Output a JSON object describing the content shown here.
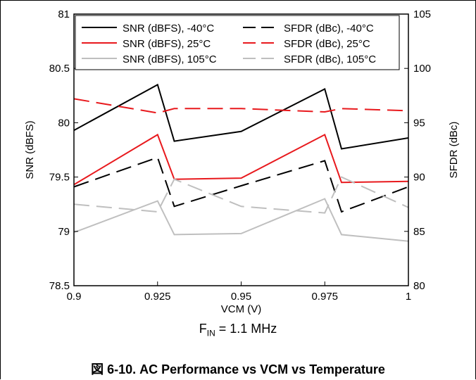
{
  "chart_data": {
    "type": "line",
    "x": [
      0.9,
      0.925,
      0.93,
      0.95,
      0.975,
      0.98,
      1.0
    ],
    "x_ticks": [
      0.9,
      0.925,
      0.95,
      0.975,
      1
    ],
    "x_tick_labels": [
      "0.9",
      "0.925",
      "0.95",
      "0.975",
      "1"
    ],
    "xlim": [
      0.9,
      1.0
    ],
    "xlabel": "VCM (V)",
    "ylabel": "SNR (dBFS)",
    "ylim": [
      78.5,
      81
    ],
    "y_ticks": [
      78.5,
      79,
      79.5,
      80,
      80.5,
      81
    ],
    "y_tick_labels": [
      "78.5",
      "79",
      "79.5",
      "80",
      "80.5",
      "81"
    ],
    "y2label": "SFDR (dBc)",
    "y2lim": [
      80,
      105
    ],
    "y2_ticks": [
      80,
      85,
      90,
      95,
      100,
      105
    ],
    "y2_tick_labels": [
      "80",
      "85",
      "90",
      "95",
      "100",
      "105"
    ],
    "grid": false,
    "legend_position": "top",
    "series": [
      {
        "name": "SNR (dBFS), -40°C",
        "axis": "left",
        "color": "#000000",
        "dash": "solid",
        "values": [
          79.93,
          80.35,
          79.83,
          79.92,
          80.31,
          79.76,
          79.86
        ]
      },
      {
        "name": "SFDR (dBc), -40°C",
        "axis": "right",
        "color": "#000000",
        "dash": "dashed",
        "values": [
          89.1,
          91.8,
          87.3,
          89.2,
          91.5,
          86.8,
          89.1
        ]
      },
      {
        "name": "SNR (dBFS), 25°C",
        "axis": "left",
        "color": "#e8191d",
        "dash": "solid",
        "values": [
          79.43,
          79.89,
          79.48,
          79.49,
          79.89,
          79.45,
          79.46
        ]
      },
      {
        "name": "SFDR (dBc), 25°C",
        "axis": "right",
        "color": "#e8191d",
        "dash": "dashed",
        "values": [
          97.2,
          95.9,
          96.3,
          96.3,
          96.0,
          96.3,
          96.1
        ]
      },
      {
        "name": "SNR (dBFS), 105°C",
        "axis": "left",
        "color": "#bfbfbf",
        "dash": "solid",
        "values": [
          78.99,
          79.28,
          78.97,
          78.98,
          79.3,
          78.97,
          78.91
        ]
      },
      {
        "name": "SFDR (dBc), 105°C",
        "axis": "right",
        "color": "#bfbfbf",
        "dash": "dashed",
        "values": [
          87.5,
          86.8,
          89.8,
          87.3,
          86.7,
          90.0,
          87.2
        ]
      }
    ]
  },
  "annotation": {
    "prefix": "F",
    "sub": "IN",
    "text": " = 1.1 MHz"
  },
  "caption": "図 6-10. AC Performance vs VCM vs Temperature"
}
